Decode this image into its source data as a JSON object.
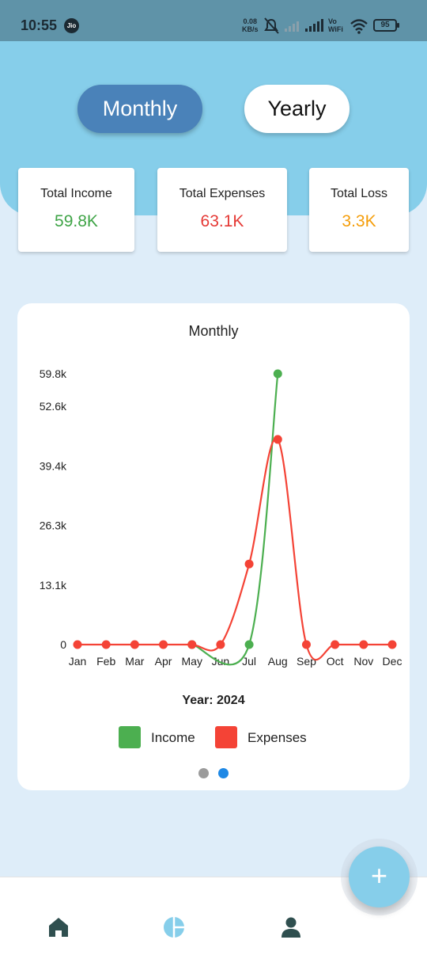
{
  "status_bar": {
    "time": "10:55",
    "carrier": "Jio",
    "net_speed_value": "0.08",
    "net_speed_unit": "KB/s",
    "wifi_label": "Vo WiFi",
    "battery": "95"
  },
  "toggle": {
    "monthly_label": "Monthly",
    "yearly_label": "Yearly",
    "selected": "Monthly"
  },
  "stats": {
    "income": {
      "label": "Total Income",
      "value": "59.8K",
      "color": "#3fa447"
    },
    "expenses": {
      "label": "Total Expenses",
      "value": "63.1K",
      "color": "#e53935"
    },
    "loss": {
      "label": "Total Loss",
      "value": "3.3K",
      "color": "#f59e0b"
    }
  },
  "chart_card": {
    "title": "Monthly",
    "year_label": "Year: 2024",
    "page_dots": 2,
    "active_dot": 2
  },
  "chart_data": {
    "type": "line",
    "title": "Monthly",
    "xlabel": "Year: 2024",
    "ylabel": "",
    "categories": [
      "Jan",
      "Feb",
      "Mar",
      "Apr",
      "May",
      "Jun",
      "Jul",
      "Aug",
      "Sep",
      "Oct",
      "Nov",
      "Dec"
    ],
    "y_ticks": [
      "0",
      "13.1k",
      "26.3k",
      "39.4k",
      "52.6k",
      "59.8k"
    ],
    "y_tick_values": [
      0,
      13100,
      26300,
      39400,
      52600,
      59800
    ],
    "ylim": [
      0,
      59800
    ],
    "grid": false,
    "legend_position": "bottom",
    "series": [
      {
        "name": "Income",
        "color": "#4caf50",
        "values": [
          null,
          null,
          null,
          null,
          0,
          null,
          0,
          59800,
          null,
          null,
          null,
          null
        ]
      },
      {
        "name": "Expenses",
        "color": "#f44336",
        "values": [
          0,
          0,
          0,
          0,
          0,
          0,
          17800,
          45300,
          0,
          0,
          0,
          0
        ]
      }
    ]
  },
  "nav": {
    "items": [
      {
        "name": "home",
        "icon": "home-icon"
      },
      {
        "name": "analytics",
        "icon": "pie-chart-icon"
      },
      {
        "name": "profile",
        "icon": "person-icon"
      }
    ],
    "fab_icon": "plus-icon",
    "fab_label": "+"
  }
}
